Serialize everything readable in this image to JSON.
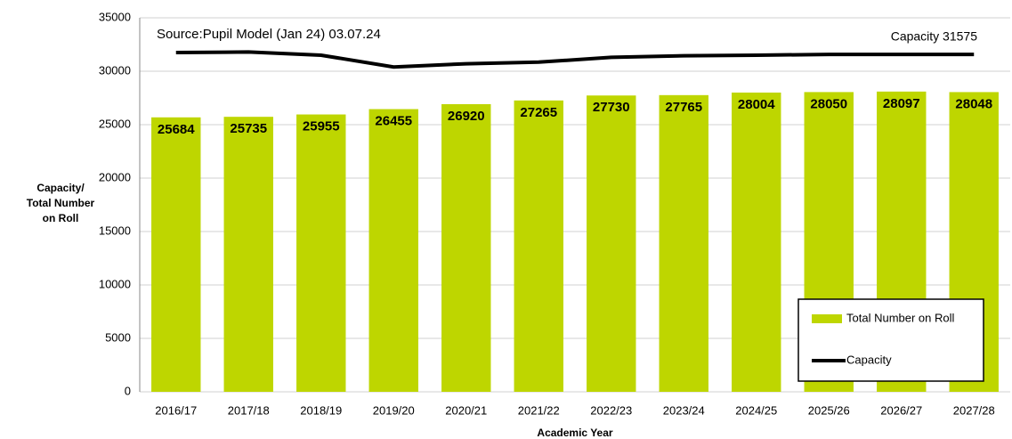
{
  "chart_data": {
    "type": "bar-line",
    "annotations": [
      "Source:Pupil Model (Jan 24) 03.07.24",
      "Capacity 31575"
    ],
    "y_label": [
      "Capacity/",
      "Total Number",
      "on Roll"
    ],
    "x_label": "Academic Year",
    "categories": [
      "2016/17",
      "2017/18",
      "2018/19",
      "2019/20",
      "2020/21",
      "2021/22",
      "2022/23",
      "2023/24",
      "2024/25",
      "2025/26",
      "2026/27",
      "2027/28"
    ],
    "series": [
      {
        "name": "Total Number on Roll",
        "type": "bar",
        "color": "#bed600",
        "values": [
          25684,
          25735,
          25955,
          26455,
          26920,
          27265,
          27730,
          27765,
          28004,
          28050,
          28097,
          28048
        ]
      },
      {
        "name": "Capacity",
        "type": "line",
        "color": "#000000",
        "values": [
          31750,
          31800,
          31500,
          30400,
          30700,
          30850,
          31300,
          31450,
          31500,
          31575,
          31575,
          31575
        ]
      }
    ],
    "ylim": [
      0,
      35000
    ],
    "yticks": [
      0,
      5000,
      10000,
      15000,
      20000,
      25000,
      30000,
      35000
    ],
    "grid": true,
    "legend": "lower right"
  }
}
